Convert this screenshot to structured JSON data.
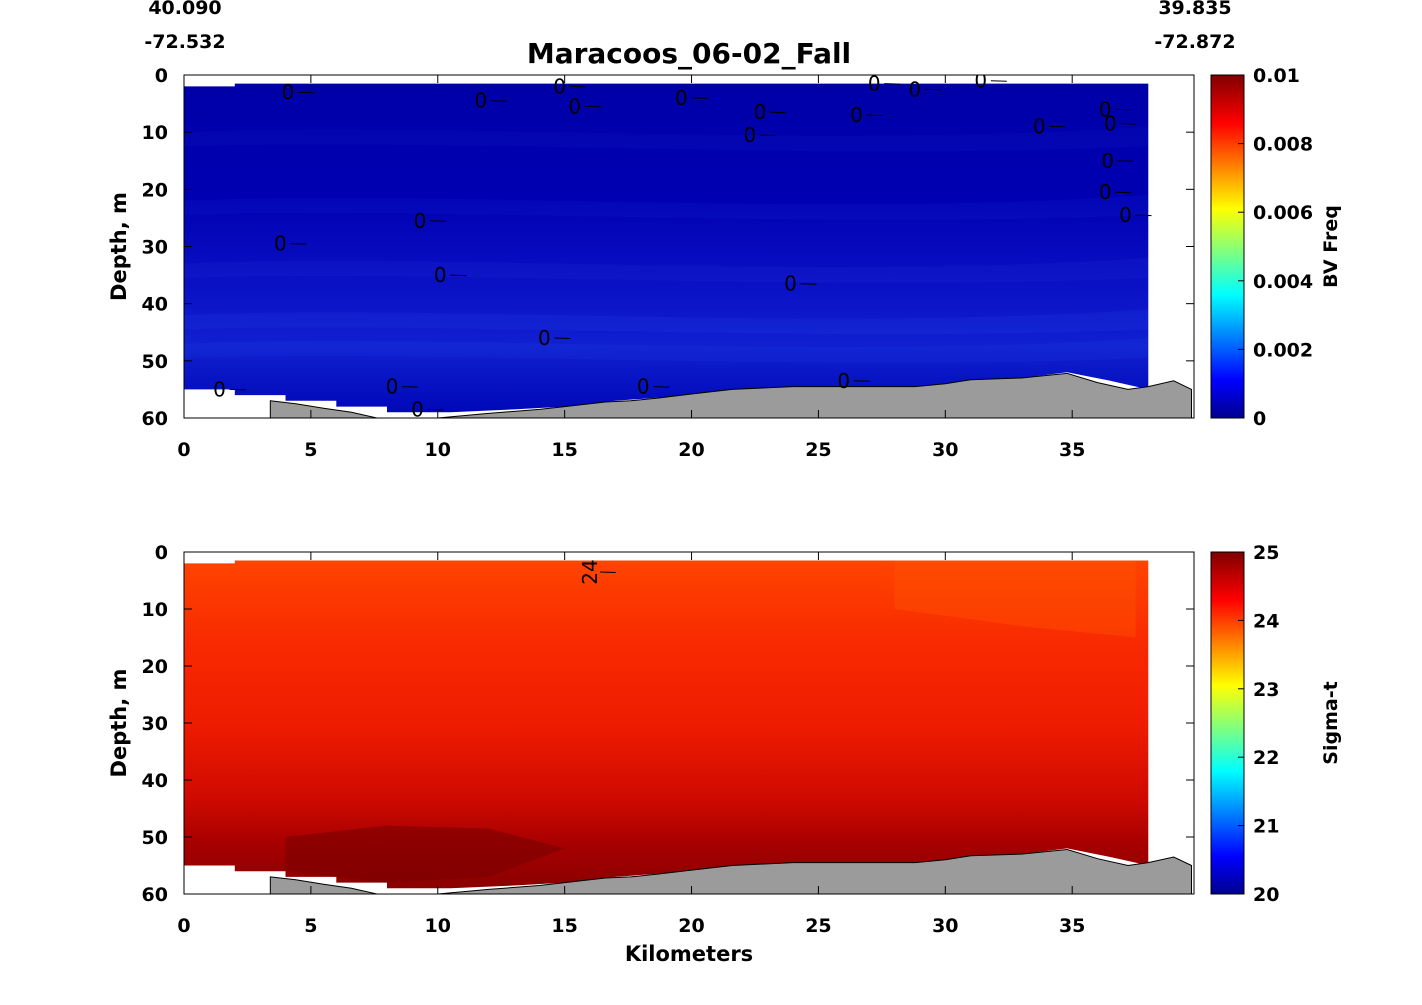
{
  "title": "Maracoos_06-02_Fall",
  "corner_labels": {
    "left_lat": "40.090",
    "left_lon": "-72.532",
    "right_lat": "39.835",
    "right_lon": "-72.872"
  },
  "colors": {
    "bathymetry": "#9b9b9b",
    "axis": "#000000",
    "contour": "#000000"
  },
  "colormap": "jet",
  "chart_data": [
    {
      "type": "heatmap",
      "panel": "top",
      "variable": "BV Freq",
      "xlabel": "",
      "ylabel": "Depth, m",
      "xlim": [
        0,
        39.8
      ],
      "ylim": [
        60,
        0
      ],
      "xticks": [
        0,
        5,
        10,
        15,
        20,
        25,
        30,
        35
      ],
      "yticks": [
        0,
        10,
        20,
        30,
        40,
        50,
        60
      ],
      "colorbar": {
        "label": "BV Freq",
        "min": 0,
        "max": 0.01,
        "ticks": [
          "0",
          "0.002",
          "0.004",
          "0.006",
          "0.008",
          "0.01"
        ]
      },
      "field_summary": {
        "min": 0,
        "max": 0.0015,
        "typical": 0.0003
      },
      "contour_level": 0,
      "contour_labels": [
        {
          "x": 4.1,
          "y": 3,
          "text": "0"
        },
        {
          "x": 11.7,
          "y": 4.5,
          "text": "0"
        },
        {
          "x": 14.8,
          "y": 2,
          "text": "0"
        },
        {
          "x": 15.4,
          "y": 5.5,
          "text": "0"
        },
        {
          "x": 19.6,
          "y": 4,
          "text": "0"
        },
        {
          "x": 22.7,
          "y": 6.5,
          "text": "0"
        },
        {
          "x": 22.3,
          "y": 10.5,
          "text": "0"
        },
        {
          "x": 26.5,
          "y": 7,
          "text": "0"
        },
        {
          "x": 27.2,
          "y": 1.5,
          "text": "0"
        },
        {
          "x": 28.8,
          "y": 2.5,
          "text": "0"
        },
        {
          "x": 31.4,
          "y": 1,
          "text": "0"
        },
        {
          "x": 33.7,
          "y": 9,
          "text": "0"
        },
        {
          "x": 36.3,
          "y": 6,
          "text": "0"
        },
        {
          "x": 36.5,
          "y": 8.5,
          "text": "0"
        },
        {
          "x": 36.4,
          "y": 15,
          "text": "0"
        },
        {
          "x": 36.3,
          "y": 20.5,
          "text": "0"
        },
        {
          "x": 37.1,
          "y": 24.5,
          "text": "0"
        },
        {
          "x": 9.3,
          "y": 25.5,
          "text": "0"
        },
        {
          "x": 3.8,
          "y": 29.5,
          "text": "0"
        },
        {
          "x": 10.1,
          "y": 35,
          "text": "0"
        },
        {
          "x": 23.9,
          "y": 36.5,
          "text": "0"
        },
        {
          "x": 14.2,
          "y": 46,
          "text": "0"
        },
        {
          "x": 1.4,
          "y": 55,
          "text": "0"
        },
        {
          "x": 8.2,
          "y": 54.5,
          "text": "0"
        },
        {
          "x": 18.1,
          "y": 54.5,
          "text": "0"
        },
        {
          "x": 9.2,
          "y": 58.5,
          "text": "0"
        },
        {
          "x": 26.0,
          "y": 53.5,
          "text": "0"
        }
      ]
    },
    {
      "type": "heatmap",
      "panel": "bottom",
      "variable": "Sigma-t",
      "xlabel": "Kilometers",
      "ylabel": "Depth, m",
      "xlim": [
        0,
        39.8
      ],
      "ylim": [
        60,
        0
      ],
      "xticks": [
        0,
        5,
        10,
        15,
        20,
        25,
        30,
        35
      ],
      "yticks": [
        0,
        10,
        20,
        30,
        40,
        50,
        60
      ],
      "colorbar": {
        "label": "Sigma-t",
        "min": 20,
        "max": 25,
        "ticks": [
          "20",
          "21",
          "22",
          "23",
          "24",
          "25"
        ]
      },
      "field_summary": {
        "min": 23.9,
        "max": 25.0,
        "surface": 24.1,
        "bottom": 24.9
      },
      "contour_levels": [
        24,
        25
      ],
      "contour_labels": [
        {
          "x": 16.0,
          "y": 3.5,
          "text": "24"
        }
      ]
    }
  ],
  "section": {
    "data_x_max": 38.0,
    "data_top_profile": [
      [
        0,
        2
      ],
      [
        2,
        2
      ],
      [
        2,
        1.5
      ],
      [
        38,
        1.5
      ]
    ],
    "data_bottom_profile": [
      [
        0,
        55
      ],
      [
        2,
        55
      ],
      [
        2,
        56
      ],
      [
        4,
        56
      ],
      [
        4,
        57
      ],
      [
        6,
        57
      ],
      [
        6,
        58
      ],
      [
        8,
        58
      ],
      [
        8,
        59
      ],
      [
        10.5,
        59
      ],
      [
        13,
        58.5
      ],
      [
        15,
        58
      ],
      [
        17,
        57
      ],
      [
        20,
        56
      ],
      [
        22,
        55
      ],
      [
        24,
        54.5
      ],
      [
        27,
        54.5
      ],
      [
        29,
        54.5
      ],
      [
        31,
        53.5
      ],
      [
        33,
        53
      ],
      [
        34.8,
        52
      ],
      [
        36.5,
        53.5
      ],
      [
        38,
        55
      ]
    ],
    "bathymetry": [
      [
        3.4,
        57
      ],
      [
        4.4,
        57.5
      ],
      [
        5.5,
        58.3
      ],
      [
        6.6,
        59
      ],
      [
        7.6,
        60
      ],
      [
        10.0,
        60
      ],
      [
        12.0,
        59.2
      ],
      [
        14.0,
        58.5
      ],
      [
        15.0,
        58
      ],
      [
        16.6,
        57.2
      ],
      [
        17.6,
        57
      ],
      [
        18.7,
        56.5
      ],
      [
        20.0,
        55.8
      ],
      [
        21.6,
        55
      ],
      [
        24.0,
        54.5
      ],
      [
        26.0,
        54.5
      ],
      [
        28.8,
        54.5
      ],
      [
        30.0,
        54
      ],
      [
        31.0,
        53.3
      ],
      [
        33.0,
        53
      ],
      [
        34.8,
        52.2
      ],
      [
        36.0,
        53.8
      ],
      [
        37.2,
        55
      ],
      [
        38.0,
        54.5
      ],
      [
        39.0,
        53.5
      ],
      [
        39.7,
        55
      ],
      [
        39.7,
        60
      ],
      [
        3.4,
        60
      ]
    ]
  }
}
